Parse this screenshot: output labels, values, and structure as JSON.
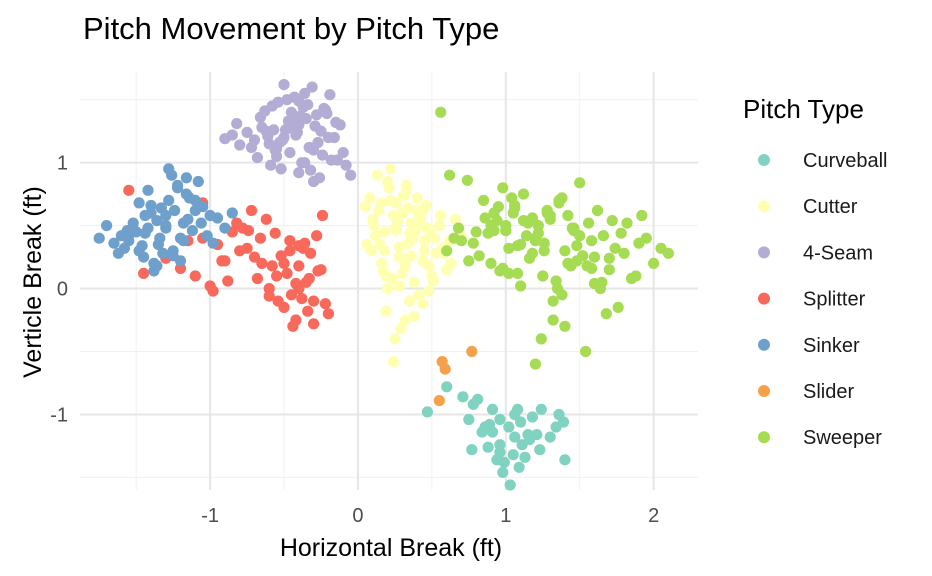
{
  "chart_data": {
    "type": "scatter",
    "title": "Pitch Movement by Pitch Type",
    "xlabel": "Horizontal Break (ft)",
    "ylabel": "Verticle Break (ft)",
    "xlim": [
      -1.88,
      2.3
    ],
    "ylim": [
      -1.6,
      1.72
    ],
    "x_ticks": [
      -1,
      0,
      1,
      2
    ],
    "y_ticks": [
      -1,
      0,
      1
    ],
    "x_tick_labels": [
      "-1",
      "0",
      "1",
      "2"
    ],
    "y_tick_labels": [
      "-1",
      "0",
      "1"
    ],
    "grid": true,
    "legend": {
      "title": "Pitch Type",
      "placement": "right"
    },
    "series": [
      {
        "name": "Curveball",
        "color": "#80d3c0",
        "x": [
          1.02,
          0.86,
          0.91,
          1.06,
          0.96,
          1.1,
          0.84,
          1.15,
          0.96,
          1.23,
          1.13,
          0.88,
          1.18,
          0.98,
          0.94,
          1.06,
          0.77,
          0.78,
          1.34,
          1.4,
          1.36,
          1.03,
          1.09,
          1.24,
          0.71,
          1.16,
          0.47,
          0.96,
          1.3,
          1.39,
          0.75,
          0.91,
          1.08,
          1.11,
          0.99,
          0.89,
          1.21,
          0.81,
          1.05,
          0.6
        ],
        "y": [
          -1.1,
          -1.1,
          -0.96,
          -1.18,
          -1.24,
          -1.06,
          -1.14,
          -1.16,
          -1.04,
          -1.28,
          -1.34,
          -1.26,
          -1.02,
          -1.46,
          -1.36,
          -1.0,
          -1.28,
          -0.92,
          -1.1,
          -1.36,
          -1.0,
          -1.56,
          -1.42,
          -0.96,
          -0.86,
          -1.2,
          -0.98,
          -1.3,
          -1.18,
          -1.06,
          -1.04,
          -1.14,
          -0.96,
          -1.24,
          -1.38,
          -1.08,
          -1.16,
          -0.88,
          -1.32,
          -0.78
        ]
      },
      {
        "name": "Cutter",
        "color": "#ffffb2",
        "x": [
          0.3,
          0.18,
          0.45,
          0.22,
          0.36,
          0.1,
          0.52,
          0.28,
          0.4,
          0.15,
          0.33,
          0.48,
          0.25,
          0.05,
          0.58,
          0.38,
          0.2,
          0.42,
          0.3,
          0.12,
          0.55,
          0.35,
          0.26,
          0.44,
          0.18,
          0.62,
          0.32,
          0.08,
          0.5,
          0.24,
          0.39,
          0.16,
          0.46,
          0.28,
          0.57,
          0.21,
          0.34,
          0.13,
          0.41,
          0.27,
          0.49,
          0.19,
          0.6,
          0.31,
          0.06,
          0.43,
          0.23,
          0.37,
          0.14,
          0.53,
          0.29,
          0.66,
          0.36,
          0.25,
          0.47,
          0.17,
          0.4,
          0.32,
          0.7,
          0.11,
          0.22,
          0.51,
          0.34,
          0.44,
          0.28,
          0.19,
          0.56,
          0.38,
          0.26,
          0.45,
          0.16,
          0.3,
          0.63,
          0.09,
          0.42,
          0.24,
          0.35,
          0.48,
          0.2,
          0.33
        ],
        "y": [
          0.6,
          0.45,
          0.3,
          0.7,
          0.52,
          0.55,
          0.4,
          0.25,
          0.62,
          0.35,
          0.78,
          0.18,
          0.48,
          0.65,
          0.28,
          0.05,
          0.85,
          0.56,
          0.12,
          0.42,
          0.5,
          -0.1,
          0.68,
          0.22,
          0.3,
          0.38,
          -0.25,
          0.72,
          0.1,
          0.58,
          0.46,
          0.2,
          0.66,
          0.02,
          0.32,
          0.8,
          0.36,
          0.9,
          -0.05,
          0.54,
          0.44,
          -0.18,
          0.15,
          0.74,
          0.35,
          0.6,
          0.08,
          0.4,
          0.62,
          0.28,
          -0.32,
          0.55,
          0.26,
          -0.4,
          0.48,
          0.14,
          0.72,
          0.18,
          0.42,
          0.5,
          0.95,
          0.06,
          0.64,
          -0.12,
          0.33,
          0.1,
          0.58,
          -0.22,
          0.46,
          0.38,
          0.68,
          0.24,
          0.2,
          0.3,
          0.52,
          -0.58,
          0.44,
          -0.02,
          0.0,
          0.82
        ]
      },
      {
        "name": "4-Seam",
        "color": "#b3acd4",
        "x": [
          -0.5,
          -0.4,
          -0.3,
          -0.45,
          -0.25,
          -0.6,
          -0.35,
          -0.55,
          -0.2,
          -0.48,
          -0.38,
          -0.65,
          -0.28,
          -0.52,
          -0.42,
          -0.15,
          -0.58,
          -0.33,
          -0.7,
          -0.22,
          -0.46,
          -0.36,
          -0.62,
          -0.18,
          -0.44,
          -0.54,
          -0.27,
          -0.75,
          -0.4,
          -0.12,
          -0.56,
          -0.31,
          -0.66,
          -0.24,
          -0.49,
          -0.37,
          -0.8,
          -0.16,
          -0.43,
          -0.59,
          -0.29,
          -0.68,
          -0.21,
          -0.51,
          -0.34,
          -0.85,
          -0.1,
          -0.47,
          -0.57,
          -0.26,
          -0.72,
          -0.39,
          -0.19,
          -0.53,
          -0.32,
          -0.63,
          -0.14,
          -0.41,
          -0.82,
          -0.08,
          -0.5,
          -0.45,
          -0.36,
          -0.61,
          -0.23,
          -0.55,
          -0.3,
          -0.9,
          -0.05,
          -0.4
        ],
        "y": [
          1.2,
          1.3,
          1.1,
          1.4,
          1.25,
          1.15,
          1.35,
          1.05,
          1.2,
          1.5,
          1.0,
          1.28,
          1.38,
          0.95,
          1.22,
          1.32,
          1.45,
          1.12,
          1.18,
          1.42,
          1.08,
          1.55,
          1.25,
          1.02,
          1.34,
          1.48,
          1.16,
          1.24,
          0.92,
          1.3,
          1.1,
          1.6,
          1.36,
          1.06,
          1.26,
          1.44,
          1.14,
          1.2,
          1.52,
          0.98,
          1.29,
          1.04,
          1.39,
          1.18,
          1.46,
          1.22,
          1.08,
          1.33,
          1.26,
          0.88,
          1.12,
          1.37,
          1.54,
          1.16,
          0.94,
          1.41,
          1.02,
          1.24,
          1.31,
          0.98,
          1.62,
          1.28,
          1.0,
          1.21,
          1.43,
          1.11,
          0.85,
          1.19,
          0.9,
          1.49
        ]
      },
      {
        "name": "Splitter",
        "color": "#f8695c",
        "x": [
          -0.4,
          -0.55,
          -0.3,
          -0.65,
          -0.45,
          -0.8,
          -0.35,
          -0.95,
          -0.5,
          -0.25,
          -0.7,
          -0.42,
          -1.05,
          -0.6,
          -0.32,
          -0.85,
          -0.48,
          -0.2,
          -0.75,
          -0.38,
          -1.15,
          -0.58,
          -0.28,
          -0.9,
          -0.44,
          -0.68,
          -0.36,
          -1.0,
          -0.52,
          -0.22,
          -0.78,
          -0.46,
          -1.2,
          -0.62,
          -0.34,
          -0.88,
          -0.4,
          -0.72,
          -0.27,
          -0.98,
          -0.56,
          -1.3,
          -0.42,
          -0.66,
          -0.3,
          -1.1,
          -0.5,
          -0.82,
          -0.37,
          -1.45,
          -0.6,
          -0.24,
          -0.92,
          -0.46,
          -0.74,
          -0.33,
          -1.05,
          -0.54,
          -1.55,
          -0.4
        ],
        "y": [
          0.0,
          0.1,
          -0.1,
          0.2,
          -0.05,
          0.3,
          0.05,
          0.35,
          -0.15,
          0.15,
          0.25,
          -0.25,
          0.4,
          0.0,
          0.28,
          0.45,
          0.12,
          -0.2,
          0.32,
          -0.08,
          0.38,
          0.18,
          0.42,
          0.22,
          -0.3,
          0.08,
          0.36,
          0.02,
          0.26,
          -0.12,
          0.48,
          0.3,
          0.16,
          0.55,
          -0.18,
          0.06,
          0.34,
          0.62,
          0.14,
          -0.02,
          0.44,
          0.24,
          0.04,
          0.4,
          -0.28,
          0.1,
          0.2,
          0.52,
          0.32,
          0.12,
          -0.06,
          0.58,
          0.22,
          0.38,
          0.46,
          0.08,
          0.68,
          -0.1,
          0.78,
          0.18
        ]
      },
      {
        "name": "Sinker",
        "color": "#6ea0cb",
        "x": [
          -1.3,
          -1.2,
          -1.4,
          -1.25,
          -1.5,
          -1.15,
          -1.35,
          -1.05,
          -1.45,
          -1.28,
          -1.6,
          -1.18,
          -1.38,
          -1.1,
          -1.55,
          -1.22,
          -1.42,
          -1.0,
          -1.32,
          -1.48,
          -1.12,
          -1.65,
          -1.26,
          -1.36,
          -0.95,
          -1.44,
          -1.16,
          -1.58,
          -1.24,
          -1.34,
          -1.08,
          -1.52,
          -1.2,
          -1.4,
          -0.9,
          -1.3,
          -1.62,
          -1.14,
          -1.46,
          -1.28,
          -1.02,
          -1.36,
          -1.56,
          -1.18,
          -1.42,
          -0.85,
          -1.25,
          -1.7,
          -1.1,
          -1.38,
          -1.33,
          -1.48,
          -1.06,
          -1.22,
          -1.54,
          -0.98,
          -1.44,
          -1.75,
          -1.16,
          -1.3
        ],
        "y": [
          0.5,
          0.4,
          0.6,
          0.3,
          0.45,
          0.55,
          0.35,
          0.65,
          0.25,
          0.7,
          0.42,
          0.52,
          0.2,
          0.62,
          0.38,
          0.8,
          0.48,
          0.58,
          0.28,
          0.68,
          0.46,
          0.36,
          0.9,
          0.18,
          0.56,
          0.44,
          0.75,
          0.32,
          0.62,
          0.4,
          0.85,
          0.52,
          0.22,
          0.66,
          0.48,
          0.58,
          0.28,
          0.72,
          0.34,
          0.95,
          0.42,
          0.54,
          0.46,
          0.38,
          0.78,
          0.6,
          0.26,
          0.5,
          0.7,
          0.14,
          0.64,
          0.3,
          0.52,
          0.82,
          0.44,
          0.36,
          0.58,
          0.4,
          0.88,
          0.48
        ]
      },
      {
        "name": "Slider",
        "color": "#f5a14a",
        "x": [
          0.57,
          0.59,
          0.55,
          0.77
        ],
        "y": [
          -0.58,
          -0.64,
          -0.89,
          -0.5
        ]
      },
      {
        "name": "Sweeper",
        "color": "#a6dc54",
        "x": [
          1.2,
          1.0,
          1.4,
          0.8,
          1.6,
          1.1,
          1.3,
          0.9,
          1.5,
          1.7,
          1.05,
          1.25,
          0.7,
          1.45,
          1.8,
          0.95,
          1.35,
          1.15,
          1.55,
          0.85,
          1.65,
          1.22,
          1.02,
          1.42,
          0.75,
          1.9,
          1.12,
          1.32,
          0.92,
          1.52,
          1.72,
          1.08,
          1.28,
          0.65,
          1.48,
          1.85,
          0.98,
          1.38,
          1.18,
          1.58,
          0.88,
          1.68,
          1.26,
          1.06,
          1.46,
          0.78,
          2.0,
          1.16,
          1.36,
          0.96,
          1.56,
          1.76,
          1.1,
          1.3,
          0.6,
          1.5,
          1.88,
          1.0,
          1.4,
          1.2,
          1.62,
          0.9,
          1.74,
          1.24,
          1.04,
          1.44,
          0.82,
          2.1,
          1.14,
          1.34,
          0.94,
          1.54,
          1.78,
          1.08,
          1.28,
          0.68,
          1.48,
          1.95,
          1.02,
          1.38,
          1.22,
          1.64,
          0.86,
          1.7,
          1.26,
          1.06,
          1.46,
          0.74,
          2.05,
          1.18,
          1.36,
          0.98,
          1.58,
          1.82,
          1.12,
          1.32,
          0.56,
          1.52,
          1.92,
          1.0,
          1.42,
          1.2,
          1.66,
          0.92,
          1.6,
          0.62
        ],
        "y": [
          0.4,
          0.5,
          0.3,
          0.45,
          0.25,
          0.35,
          0.55,
          0.2,
          0.42,
          0.15,
          0.6,
          0.1,
          0.38,
          0.48,
          0.28,
          0.65,
          0.0,
          0.52,
          0.18,
          0.7,
          0.05,
          0.44,
          0.32,
          0.58,
          0.22,
          0.36,
          0.75,
          -0.1,
          0.46,
          0.26,
          0.54,
          0.12,
          0.62,
          0.4,
          0.34,
          0.08,
          0.8,
          -0.05,
          0.56,
          0.16,
          0.44,
          -0.2,
          0.3,
          0.66,
          0.48,
          0.36,
          0.2,
          0.24,
          0.68,
          0.14,
          0.52,
          -0.15,
          0.02,
          0.58,
          0.3,
          0.84,
          0.1,
          0.46,
          -0.3,
          0.38,
          0.62,
          0.5,
          0.32,
          -0.4,
          0.72,
          0.18,
          0.26,
          0.28,
          0.42,
          0.06,
          0.54,
          -0.5,
          0.44,
          0.34,
          0.6,
          0.48,
          0.22,
          0.4,
          0.12,
          0.72,
          0.5,
          0.0,
          0.56,
          0.24,
          0.36,
          0.64,
          0.46,
          0.86,
          0.32,
          0.28,
          0.7,
          0.16,
          0.38,
          0.52,
          0.54,
          -0.25,
          1.4,
          0.26,
          0.58,
          0.46,
          0.2,
          -0.6,
          0.42,
          0.6,
          0.04,
          0.9
        ]
      }
    ]
  }
}
